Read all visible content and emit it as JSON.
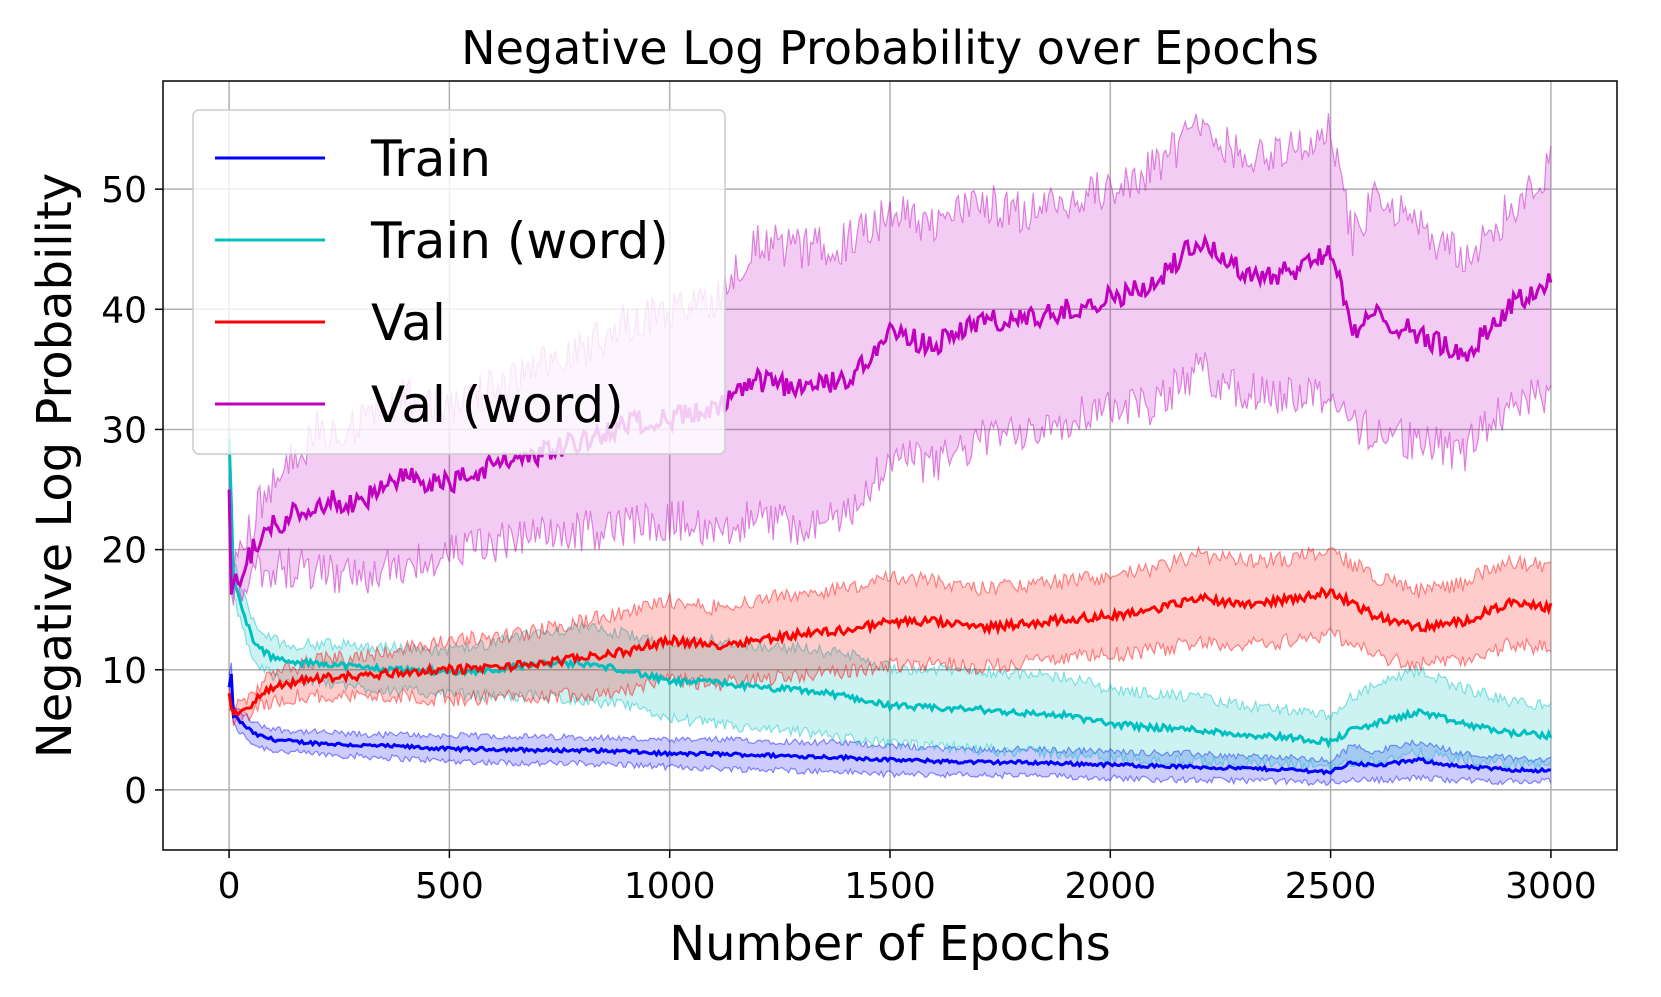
{
  "chart_data": {
    "type": "line",
    "title": "Negative Log Probability over Epochs",
    "xlabel": "Number of Epochs",
    "ylabel": "Negative Log Probability",
    "xlim": [
      -150,
      3150
    ],
    "ylim": [
      -5,
      59
    ],
    "xticks": [
      0,
      500,
      1000,
      1500,
      2000,
      2500,
      3000
    ],
    "yticks": [
      0,
      10,
      20,
      30,
      40,
      50
    ],
    "grid": true,
    "legend_position": "upper-left",
    "series": [
      {
        "name": "Train",
        "color": "#0000ff",
        "shaded_band": true,
        "x": [
          0,
          5,
          10,
          30,
          60,
          100,
          150,
          200,
          300,
          400,
          500,
          600,
          700,
          800,
          900,
          1000,
          1100,
          1200,
          1300,
          1400,
          1500,
          1600,
          1700,
          1800,
          1900,
          2000,
          2100,
          2200,
          2300,
          2400,
          2500,
          2550,
          2600,
          2700,
          2800,
          2900,
          3000
        ],
        "mean": [
          8.5,
          9.5,
          6.2,
          5.5,
          4.6,
          4.2,
          4.0,
          3.9,
          3.7,
          3.6,
          3.4,
          3.4,
          3.3,
          3.3,
          3.2,
          3.0,
          3.0,
          2.9,
          2.8,
          2.7,
          2.5,
          2.4,
          2.3,
          2.3,
          2.2,
          2.1,
          2.0,
          1.9,
          1.8,
          1.7,
          1.5,
          2.3,
          2.0,
          2.5,
          1.9,
          1.7,
          1.6
        ],
        "lower": [
          7.5,
          8.0,
          5.4,
          4.6,
          3.7,
          3.3,
          3.1,
          3.0,
          2.8,
          2.6,
          2.4,
          2.3,
          2.2,
          2.2,
          2.1,
          1.9,
          1.8,
          1.7,
          1.6,
          1.5,
          1.3,
          1.3,
          1.2,
          1.2,
          1.1,
          1.0,
          0.9,
          0.8,
          0.8,
          0.7,
          0.6,
          0.9,
          0.8,
          1.0,
          0.8,
          0.7,
          0.7
        ],
        "upper": [
          9.5,
          10.5,
          7.0,
          6.4,
          5.5,
          5.1,
          4.9,
          4.8,
          4.6,
          4.6,
          4.5,
          4.5,
          4.4,
          4.4,
          4.3,
          4.1,
          4.2,
          4.1,
          4.0,
          3.9,
          3.7,
          3.5,
          3.4,
          3.4,
          3.3,
          3.2,
          3.1,
          3.0,
          2.8,
          2.7,
          2.4,
          3.7,
          3.2,
          4.0,
          3.0,
          2.7,
          2.5
        ]
      },
      {
        "name": "Train (word)",
        "color": "#00bfbf",
        "shaded_band": true,
        "x": [
          0,
          5,
          10,
          30,
          60,
          100,
          150,
          200,
          300,
          400,
          500,
          600,
          700,
          800,
          900,
          1000,
          1100,
          1200,
          1300,
          1400,
          1500,
          1600,
          1700,
          1800,
          1900,
          2000,
          2100,
          2200,
          2300,
          2400,
          2500,
          2550,
          2600,
          2700,
          2800,
          2900,
          3000
        ],
        "mean": [
          29.0,
          24.0,
          17.5,
          15.0,
          12.0,
          11.0,
          10.5,
          10.6,
          10.2,
          10.0,
          9.8,
          10.0,
          10.5,
          10.5,
          10.0,
          9.0,
          9.0,
          8.5,
          8.3,
          7.8,
          7.0,
          6.8,
          6.7,
          6.4,
          6.2,
          5.5,
          5.2,
          5.0,
          4.6,
          4.4,
          4.0,
          5.0,
          5.5,
          6.5,
          5.5,
          4.8,
          4.5
        ],
        "lower": [
          27.0,
          22.0,
          16.0,
          13.5,
          10.5,
          9.5,
          9.0,
          9.0,
          8.5,
          8.2,
          8.0,
          7.8,
          7.8,
          7.5,
          7.0,
          6.0,
          5.5,
          5.0,
          4.8,
          4.3,
          3.8,
          3.6,
          3.4,
          3.2,
          3.0,
          2.6,
          2.4,
          2.3,
          2.2,
          2.1,
          2.0,
          2.2,
          2.4,
          3.0,
          2.5,
          2.2,
          2.0
        ],
        "upper": [
          31.0,
          26.0,
          19.0,
          16.5,
          13.5,
          12.5,
          12.0,
          12.2,
          12.0,
          11.8,
          11.6,
          12.2,
          13.2,
          13.5,
          13.0,
          12.0,
          12.5,
          12.0,
          11.8,
          11.3,
          10.2,
          10.0,
          10.0,
          9.6,
          9.4,
          8.4,
          8.0,
          7.7,
          7.0,
          6.7,
          6.0,
          7.8,
          8.6,
          10.0,
          8.5,
          7.4,
          7.0
        ]
      },
      {
        "name": "Val",
        "color": "#ff0000",
        "shaded_band": true,
        "x": [
          0,
          5,
          10,
          30,
          60,
          100,
          150,
          200,
          300,
          400,
          500,
          600,
          700,
          800,
          900,
          1000,
          1100,
          1200,
          1300,
          1400,
          1500,
          1600,
          1700,
          1800,
          1900,
          2000,
          2100,
          2200,
          2300,
          2400,
          2500,
          2550,
          2600,
          2700,
          2800,
          2900,
          3000
        ],
        "mean": [
          8.0,
          7.0,
          6.2,
          6.5,
          7.5,
          8.5,
          9.0,
          9.3,
          9.5,
          9.8,
          10.0,
          10.2,
          10.5,
          11.0,
          11.5,
          12.5,
          12.0,
          12.5,
          13.0,
          13.3,
          14.0,
          14.0,
          13.5,
          13.8,
          14.2,
          14.5,
          15.0,
          16.0,
          15.5,
          15.8,
          16.5,
          15.5,
          14.5,
          13.5,
          14.0,
          15.5,
          15.2
        ],
        "lower": [
          7.2,
          6.2,
          5.5,
          5.8,
          6.6,
          7.4,
          7.8,
          7.8,
          7.8,
          7.8,
          7.6,
          7.7,
          7.8,
          8.0,
          8.3,
          9.2,
          8.8,
          9.2,
          9.6,
          9.8,
          10.4,
          10.6,
          10.2,
          10.6,
          11.0,
          11.2,
          11.6,
          12.4,
          12.0,
          12.4,
          13.0,
          12.2,
          11.2,
          10.4,
          10.8,
          12.0,
          11.8
        ],
        "upper": [
          8.8,
          7.8,
          6.9,
          7.2,
          8.4,
          9.6,
          10.2,
          10.8,
          11.2,
          11.8,
          12.4,
          12.7,
          13.2,
          14.0,
          14.7,
          15.8,
          15.2,
          15.8,
          16.4,
          16.8,
          17.6,
          17.4,
          16.8,
          17.0,
          17.4,
          17.8,
          18.4,
          19.6,
          19.0,
          19.2,
          20.0,
          18.8,
          17.8,
          16.6,
          17.2,
          19.0,
          18.6
        ]
      },
      {
        "name": "Val (word)",
        "color": "#bf00bf",
        "shaded_band": true,
        "x": [
          0,
          5,
          10,
          30,
          60,
          100,
          150,
          200,
          300,
          400,
          500,
          600,
          700,
          800,
          900,
          1000,
          1100,
          1200,
          1300,
          1400,
          1500,
          1600,
          1700,
          1800,
          1900,
          2000,
          2100,
          2200,
          2300,
          2400,
          2500,
          2550,
          2600,
          2700,
          2800,
          2900,
          3000
        ],
        "mean": [
          24.5,
          17.0,
          17.5,
          18.0,
          20.5,
          22.0,
          23.0,
          24.0,
          24.0,
          26.0,
          25.5,
          27.0,
          28.0,
          29.0,
          30.5,
          31.0,
          31.5,
          34.0,
          33.5,
          34.0,
          38.0,
          37.0,
          39.0,
          39.0,
          40.0,
          41.0,
          42.0,
          46.0,
          43.0,
          43.0,
          45.0,
          38.0,
          39.5,
          38.0,
          36.0,
          40.0,
          42.5
        ],
        "lower": [
          22.5,
          16.0,
          16.5,
          16.5,
          18.0,
          18.5,
          18.5,
          18.0,
          17.5,
          19.0,
          19.5,
          20.5,
          21.0,
          21.5,
          22.0,
          22.5,
          22.0,
          22.5,
          22.0,
          22.5,
          28.0,
          27.0,
          29.0,
          30.0,
          31.0,
          32.0,
          32.0,
          35.0,
          33.0,
          33.0,
          33.0,
          30.0,
          30.0,
          29.0,
          28.0,
          32.0,
          33.0
        ],
        "upper": [
          26.5,
          18.0,
          18.5,
          19.5,
          23.0,
          25.5,
          27.5,
          30.0,
          30.5,
          33.0,
          31.5,
          33.5,
          35.0,
          36.5,
          39.0,
          39.5,
          41.0,
          45.5,
          45.0,
          45.5,
          48.0,
          47.0,
          49.0,
          48.0,
          49.0,
          50.0,
          52.0,
          55.0,
          53.0,
          53.0,
          55.0,
          46.0,
          49.0,
          47.0,
          44.0,
          48.0,
          52.0
        ]
      }
    ]
  }
}
